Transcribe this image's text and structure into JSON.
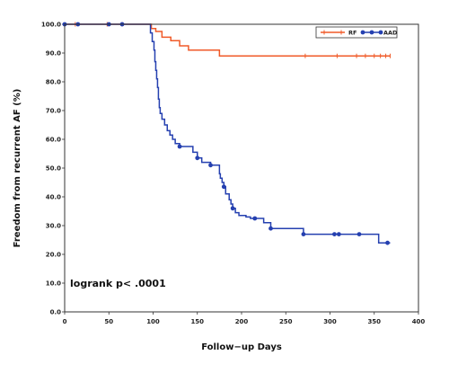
{
  "chart_data": {
    "type": "line",
    "step": true,
    "title": "",
    "xlabel": "Follow−up Days",
    "ylabel": "Freedom from recurrent AF (%)",
    "xlim": [
      0,
      400
    ],
    "ylim": [
      0,
      100
    ],
    "xticks": [
      "0",
      "50",
      "100",
      "150",
      "200",
      "250",
      "300",
      "350",
      "400"
    ],
    "yticks": [
      "0.0",
      "10.0",
      "20.0",
      "30.0",
      "40.0",
      "50.0",
      "60.0",
      "70.0",
      "80.0",
      "90.0",
      "100.0"
    ],
    "grid": false,
    "legend_position": "top-right",
    "annotation": "logrank p< .0001",
    "series": [
      {
        "name": "RF",
        "color": "#f05a28",
        "marker": "plus",
        "points": [
          [
            0,
            100
          ],
          [
            95,
            100
          ],
          [
            98,
            98.5
          ],
          [
            103,
            97.5
          ],
          [
            110,
            95.5
          ],
          [
            120,
            94.3
          ],
          [
            130,
            92.5
          ],
          [
            140,
            91
          ],
          [
            175,
            89
          ],
          [
            368,
            89
          ]
        ],
        "censored": [
          [
            12,
            100
          ],
          [
            48,
            100
          ],
          [
            65,
            100
          ],
          [
            272,
            89
          ],
          [
            308,
            89
          ],
          [
            330,
            89
          ],
          [
            340,
            89
          ],
          [
            350,
            89
          ],
          [
            357,
            89
          ],
          [
            363,
            89
          ],
          [
            368,
            89
          ]
        ]
      },
      {
        "name": "AAD",
        "color": "#2540b0",
        "marker": "dot",
        "points": [
          [
            0,
            100
          ],
          [
            95,
            100
          ],
          [
            97,
            97
          ],
          [
            99,
            94
          ],
          [
            101,
            91
          ],
          [
            102,
            87
          ],
          [
            103,
            84
          ],
          [
            104,
            81
          ],
          [
            105,
            78
          ],
          [
            106,
            74
          ],
          [
            107,
            71
          ],
          [
            108,
            69
          ],
          [
            110,
            67
          ],
          [
            113,
            65
          ],
          [
            116,
            63
          ],
          [
            119,
            61.5
          ],
          [
            122,
            60
          ],
          [
            125,
            58.5
          ],
          [
            130,
            57.5
          ],
          [
            145,
            55.5
          ],
          [
            150,
            53.5
          ],
          [
            155,
            52
          ],
          [
            165,
            51
          ],
          [
            175,
            48
          ],
          [
            176,
            46.5
          ],
          [
            178,
            45
          ],
          [
            180,
            43.5
          ],
          [
            182,
            41
          ],
          [
            186,
            39
          ],
          [
            188,
            37.5
          ],
          [
            190,
            36
          ],
          [
            193,
            34.5
          ],
          [
            197,
            33.5
          ],
          [
            205,
            33
          ],
          [
            210,
            32.5
          ],
          [
            225,
            31
          ],
          [
            233,
            29
          ],
          [
            270,
            27
          ],
          [
            355,
            24
          ],
          [
            368,
            24
          ]
        ],
        "censored": [
          [
            0,
            100
          ],
          [
            15,
            100
          ],
          [
            50,
            100
          ],
          [
            65,
            100
          ],
          [
            130,
            57.5
          ],
          [
            150,
            53.5
          ],
          [
            165,
            51
          ],
          [
            180,
            43.5
          ],
          [
            190,
            36
          ],
          [
            215,
            32.5
          ],
          [
            233,
            29
          ],
          [
            270,
            27
          ],
          [
            305,
            27
          ],
          [
            310,
            27
          ],
          [
            333,
            27
          ],
          [
            365,
            24
          ]
        ]
      }
    ]
  }
}
